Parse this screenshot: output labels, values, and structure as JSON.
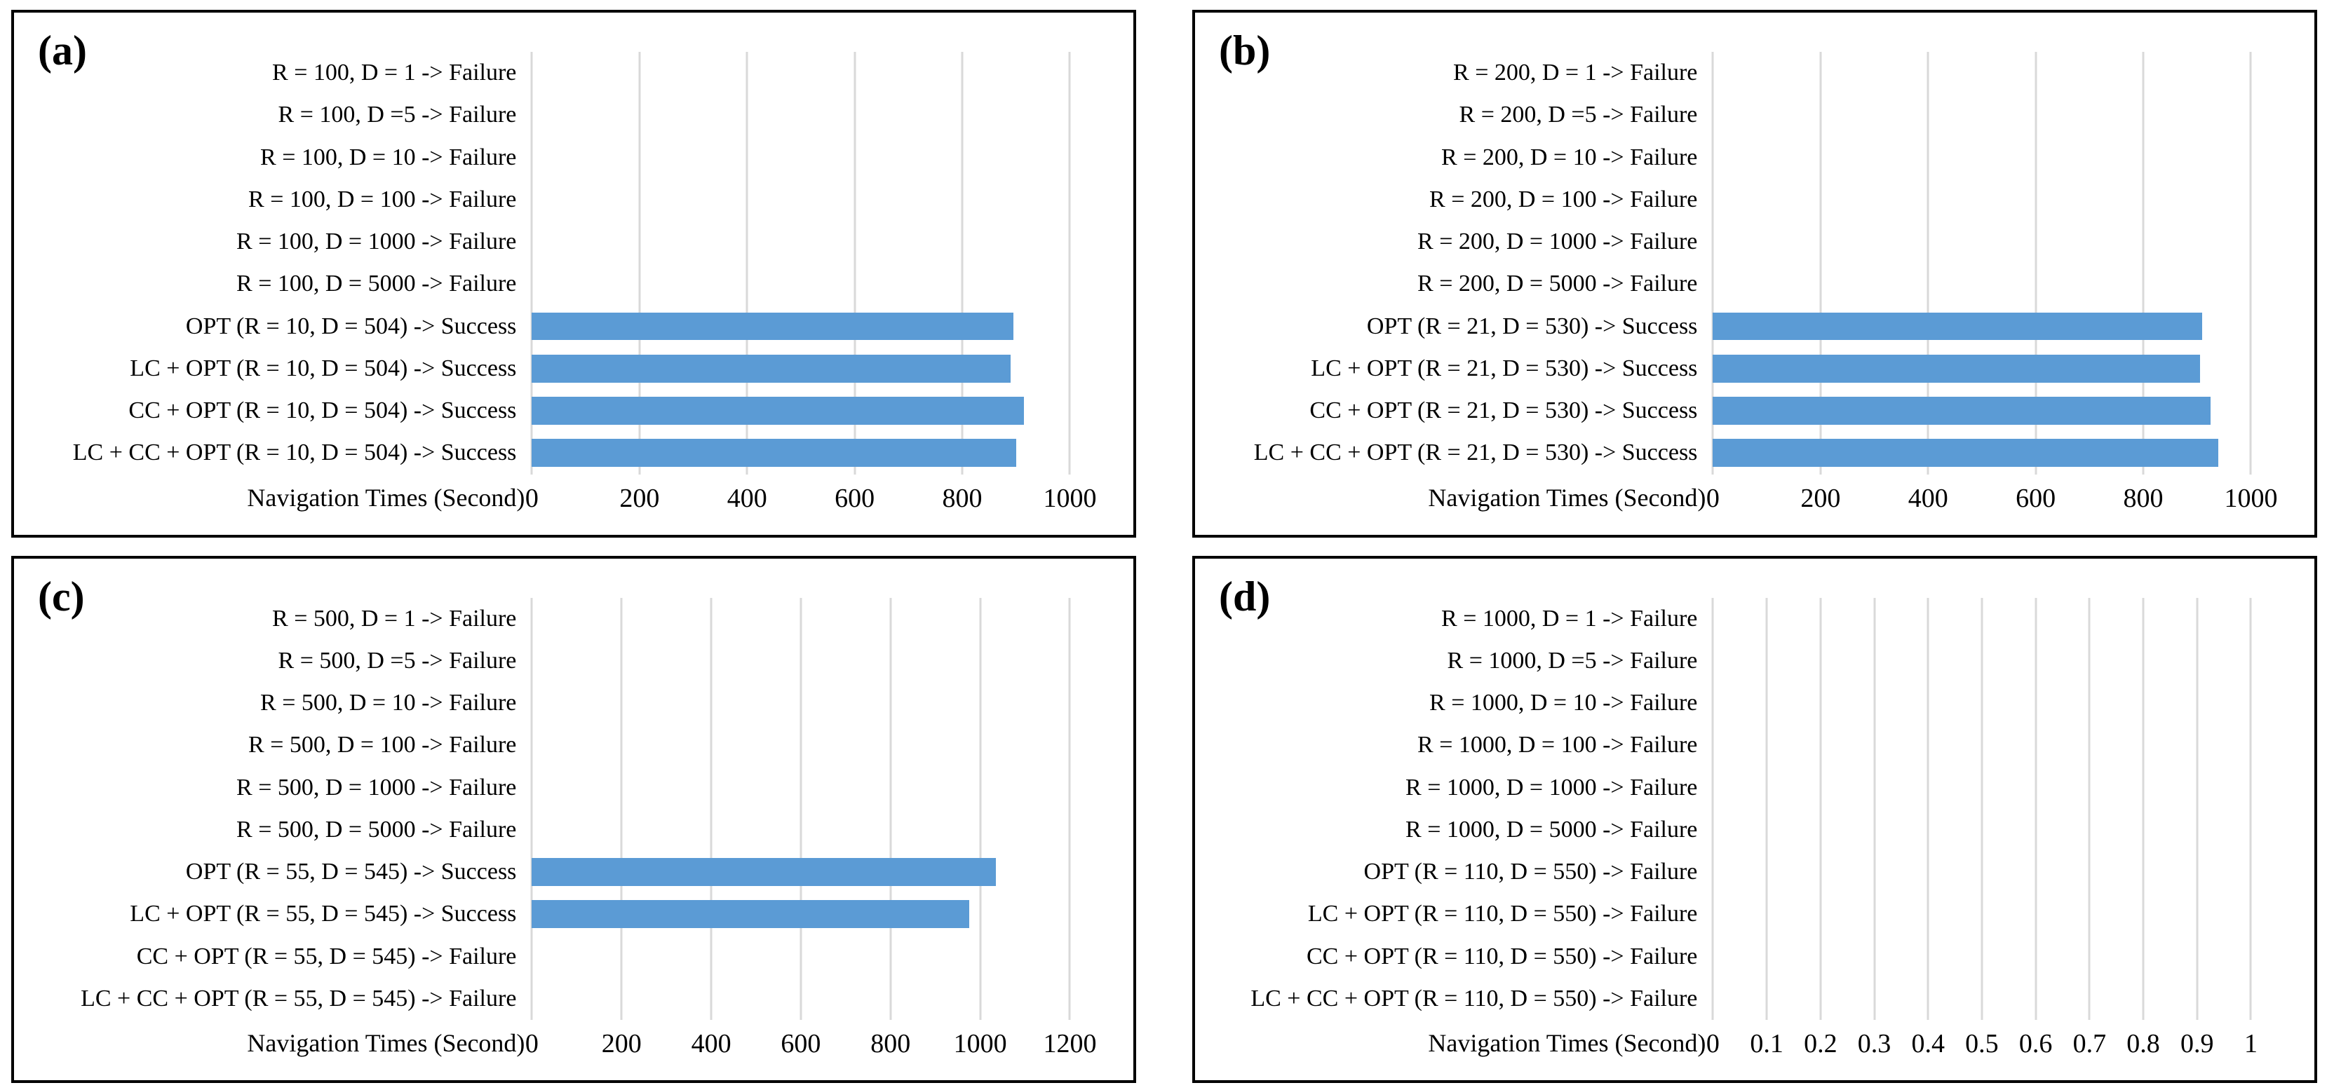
{
  "colors": {
    "bar": "#5b9bd5",
    "gridline": "#d9d9d9",
    "panel_border": "#000000",
    "text": "#000000",
    "background": "#ffffff"
  },
  "chart_data": [
    {
      "panel_label": "(a)",
      "type": "bar",
      "orientation": "horizontal",
      "xlabel": "Navigation Times (Second)",
      "xlim": [
        0,
        1000
      ],
      "xticks": [
        0,
        200,
        400,
        600,
        800,
        1000
      ],
      "grid": true,
      "legend": "none",
      "categories": [
        "R = 100, D = 1 -> Failure",
        "R = 100, D =5 -> Failure",
        "R = 100, D = 10 -> Failure",
        "R = 100, D = 100 -> Failure",
        "R = 100, D = 1000 -> Failure",
        "R = 100, D = 5000 -> Failure",
        "OPT (R = 10, D = 504) -> Success",
        "LC + OPT (R = 10, D = 504) -> Success",
        "CC + OPT (R = 10, D = 504) -> Success",
        "LC + CC + OPT (R = 10, D = 504) -> Success"
      ],
      "values": [
        0,
        0,
        0,
        0,
        0,
        0,
        895,
        890,
        915,
        900
      ]
    },
    {
      "panel_label": "(b)",
      "type": "bar",
      "orientation": "horizontal",
      "xlabel": "Navigation Times (Second)",
      "xlim": [
        0,
        1000
      ],
      "xticks": [
        0,
        200,
        400,
        600,
        800,
        1000
      ],
      "grid": true,
      "legend": "none",
      "categories": [
        "R = 200, D = 1 -> Failure",
        "R = 200, D =5 -> Failure",
        "R = 200, D = 10 -> Failure",
        "R = 200, D = 100 -> Failure",
        "R = 200, D = 1000 -> Failure",
        "R = 200, D = 5000 -> Failure",
        "OPT (R = 21, D = 530) -> Success",
        "LC + OPT (R = 21, D = 530) -> Success",
        "CC + OPT (R = 21, D = 530) -> Success",
        "LC + CC + OPT (R = 21, D = 530) -> Success"
      ],
      "values": [
        0,
        0,
        0,
        0,
        0,
        0,
        910,
        905,
        925,
        940
      ]
    },
    {
      "panel_label": "(c)",
      "type": "bar",
      "orientation": "horizontal",
      "xlabel": "Navigation Times (Second)",
      "xlim": [
        0,
        1200
      ],
      "xticks": [
        0,
        200,
        400,
        600,
        800,
        1000,
        1200
      ],
      "grid": true,
      "legend": "none",
      "categories": [
        "R = 500, D = 1 -> Failure",
        "R = 500, D =5 -> Failure",
        "R = 500, D = 10 -> Failure",
        "R = 500, D = 100 -> Failure",
        "R = 500, D = 1000 -> Failure",
        "R = 500, D = 5000 -> Failure",
        "OPT (R = 55, D = 545) -> Success",
        "LC + OPT (R = 55, D = 545) -> Success",
        "CC + OPT (R = 55, D = 545) -> Failure",
        "LC + CC + OPT (R = 55, D = 545) -> Failure"
      ],
      "values": [
        0,
        0,
        0,
        0,
        0,
        0,
        1035,
        975,
        0,
        0
      ]
    },
    {
      "panel_label": "(d)",
      "type": "bar",
      "orientation": "horizontal",
      "xlabel": "Navigation Times (Second)",
      "xlim": [
        0,
        1
      ],
      "xticks": [
        0,
        0.1,
        0.2,
        0.3,
        0.4,
        0.5,
        0.6,
        0.7,
        0.8,
        0.9,
        1
      ],
      "grid": true,
      "legend": "none",
      "categories": [
        "R = 1000, D = 1 -> Failure",
        "R = 1000, D =5 -> Failure",
        "R = 1000, D = 10 -> Failure",
        "R = 1000, D = 100 -> Failure",
        "R = 1000, D = 1000 -> Failure",
        "R = 1000, D = 5000 -> Failure",
        "OPT (R = 110, D = 550) -> Failure",
        "LC + OPT (R = 110, D = 550) -> Failure",
        "CC + OPT (R = 110, D = 550) -> Failure",
        "LC + CC + OPT (R = 110, D = 550) -> Failure"
      ],
      "values": [
        0,
        0,
        0,
        0,
        0,
        0,
        0,
        0,
        0,
        0
      ]
    }
  ]
}
